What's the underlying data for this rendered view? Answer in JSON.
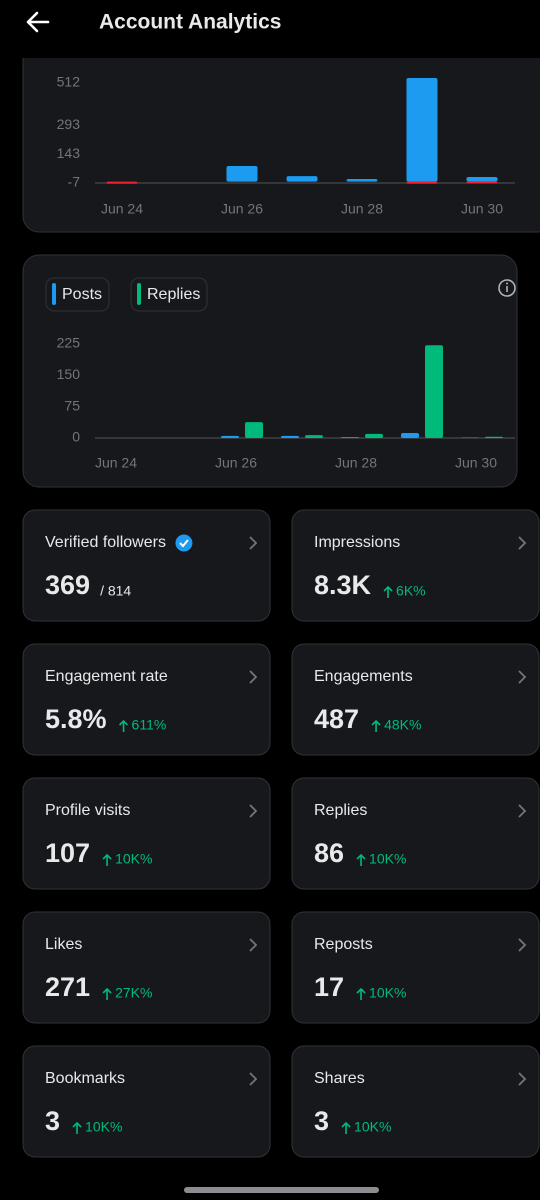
{
  "header": {
    "title": "Account Analytics"
  },
  "chart_data": [
    {
      "type": "bar",
      "categories": [
        "Jun 24",
        null,
        "Jun 26",
        null,
        "Jun 28",
        null,
        "Jun 30"
      ],
      "series": [
        {
          "color": "#1d9bf0",
          "values": [
            0,
            0,
            81,
            29,
            14,
            538,
            24
          ]
        },
        {
          "color": "#f4212e",
          "values": [
            -10,
            0,
            0,
            0,
            0,
            -10,
            -8
          ]
        }
      ],
      "ylim": [
        -15,
        560
      ],
      "yticks": [
        512,
        293,
        143,
        -7
      ]
    },
    {
      "type": "bar",
      "categories": [
        "Jun 24",
        null,
        "Jun 26",
        null,
        "Jun 28",
        null,
        "Jun 30"
      ],
      "series": [
        {
          "name": "Posts",
          "color": "#1d9bf0",
          "values": [
            0,
            0,
            5,
            5,
            2,
            12,
            1
          ]
        },
        {
          "name": "Replies",
          "color": "#00ba7c",
          "values": [
            0,
            0,
            38,
            7,
            10,
            222,
            3
          ]
        }
      ],
      "ylim": [
        0,
        240
      ],
      "yticks": [
        225,
        150,
        75,
        0
      ]
    }
  ],
  "metrics": [
    {
      "label": "Verified followers",
      "value": "369",
      "total": "/ 814"
    },
    {
      "label": "Impressions",
      "value": "8.3K",
      "change": "6K%"
    },
    {
      "label": "Engagement rate",
      "value": "5.8%",
      "change": "611%"
    },
    {
      "label": "Engagements",
      "value": "487",
      "change": "48K%"
    },
    {
      "label": "Profile visits",
      "value": "107",
      "change": "10K%"
    },
    {
      "label": "Replies",
      "value": "86",
      "change": "10K%"
    },
    {
      "label": "Likes",
      "value": "271",
      "change": "27K%"
    },
    {
      "label": "Reposts",
      "value": "17",
      "change": "10K%"
    },
    {
      "label": "Bookmarks",
      "value": "3",
      "change": "10K%"
    },
    {
      "label": "Shares",
      "value": "3",
      "change": "10K%"
    }
  ]
}
